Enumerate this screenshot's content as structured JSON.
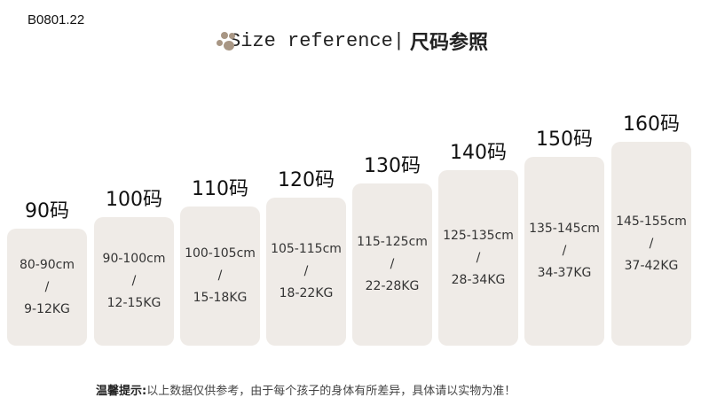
{
  "product_code": "B0801.22",
  "title_en": "Size reference|",
  "title_zh": "尺码参照",
  "sizes": [
    {
      "label": "90码",
      "height": "80-90cm",
      "sep": "/",
      "weight": "9-12KG"
    },
    {
      "label": "100码",
      "height": "90-100cm",
      "sep": "/",
      "weight": "12-15KG"
    },
    {
      "label": "110码",
      "height": "100-105cm",
      "sep": "/",
      "weight": "15-18KG"
    },
    {
      "label": "120码",
      "height": "105-115cm",
      "sep": "/",
      "weight": "18-22KG"
    },
    {
      "label": "130码",
      "height": "115-125cm",
      "sep": "/",
      "weight": "22-28KG"
    },
    {
      "label": "140码",
      "height": "125-135cm",
      "sep": "/",
      "weight": "28-34KG"
    },
    {
      "label": "150码",
      "height": "135-145cm",
      "sep": "/",
      "weight": "34-37KG"
    },
    {
      "label": "160码",
      "height": "145-155cm",
      "sep": "/",
      "weight": "37-42KG"
    }
  ],
  "note_label": "温馨提示:",
  "note_text": "以上数据仅供参考，由于每个孩子的身体有所差异，具体请以实物为准！",
  "colors": {
    "card": "#efebe7",
    "paw": "#a89684"
  }
}
